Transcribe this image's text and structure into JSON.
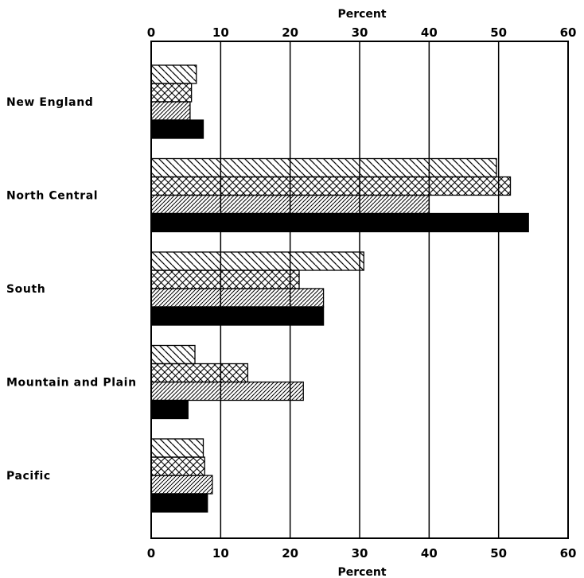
{
  "chart_data": {
    "type": "bar",
    "orientation": "horizontal",
    "xlabel_top": "Percent",
    "xlabel_bottom": "Percent",
    "xlim": [
      0,
      60
    ],
    "xticks": [
      0,
      10,
      20,
      30,
      40,
      50,
      60
    ],
    "grid": true,
    "legend": "none",
    "categories": [
      "New England",
      "North Central",
      "South",
      "Mountain and Plain",
      "Pacific"
    ],
    "series": [
      {
        "pattern": "diagonal-hatch-backslash",
        "values": [
          6.5,
          49.7,
          30.6,
          6.3,
          7.5
        ]
      },
      {
        "pattern": "crosshatch",
        "values": [
          5.8,
          51.7,
          21.3,
          13.9,
          7.7
        ]
      },
      {
        "pattern": "diagonal-hatch-slash",
        "values": [
          5.6,
          40.0,
          24.8,
          21.9,
          8.8
        ]
      },
      {
        "pattern": "solid-black",
        "values": [
          7.5,
          54.3,
          24.8,
          5.3,
          8.1
        ]
      }
    ]
  }
}
